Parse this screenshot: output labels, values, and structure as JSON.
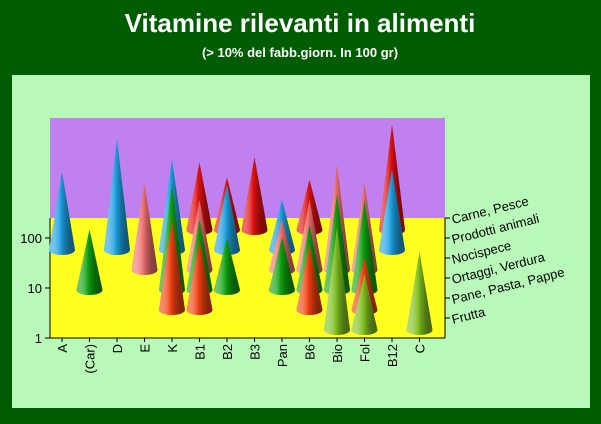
{
  "chart_data": {
    "type": "cone",
    "title": "Vitamine rilevanti in alimenti",
    "subtitle": "(> 10% del fabb.giorn. In 100 gr)",
    "categories": [
      "A",
      "(Car)",
      "D",
      "E",
      "K",
      "B1",
      "B2",
      "B3",
      "Pan",
      "B6",
      "Bio",
      "Fol",
      "B12",
      "C"
    ],
    "series": [
      {
        "name": "Carne, Pesce",
        "color": "#e01010",
        "values": [
          null,
          null,
          null,
          null,
          null,
          22,
          11,
          28,
          null,
          10,
          null,
          null,
          126,
          null
        ]
      },
      {
        "name": "Prodotti animali",
        "color": "#1ea0e0",
        "values": [
          36,
          null,
          158,
          null,
          63,
          null,
          20,
          null,
          10,
          null,
          null,
          null,
          40,
          null
        ]
      },
      {
        "name": "Nocispece",
        "color": "#f07070",
        "values": [
          null,
          null,
          null,
          55,
          null,
          25,
          null,
          null,
          10,
          25,
          126,
          55,
          null,
          null
        ]
      },
      {
        "name": "Ortaggi, Verdura",
        "color": "#10a010",
        "values": [
          null,
          16,
          null,
          null,
          126,
          25,
          11,
          null,
          11,
          20,
          80,
          63,
          null,
          null
        ]
      },
      {
        "name": "Pane, Pasta, Pappe",
        "color": "#f04010",
        "values": [
          null,
          null,
          null,
          null,
          63,
          25,
          null,
          null,
          null,
          20,
          null,
          11,
          null,
          null
        ]
      },
      {
        "name": "Frutta",
        "color": "#80c020",
        "values": [
          null,
          null,
          null,
          null,
          null,
          null,
          null,
          null,
          null,
          null,
          110,
          13,
          null,
          36
        ]
      }
    ],
    "ylim": [
      1,
      25000
    ],
    "yticks": [
      1,
      10,
      100
    ],
    "log_scale": true
  }
}
